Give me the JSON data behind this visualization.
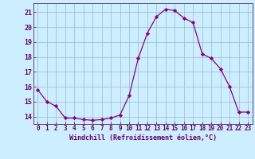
{
  "x_values": [
    0,
    1,
    2,
    3,
    4,
    5,
    6,
    7,
    8,
    9,
    10,
    11,
    12,
    13,
    14,
    15,
    16,
    17,
    18,
    19,
    20,
    21,
    22,
    23
  ],
  "y_values": [
    15.8,
    15.0,
    14.7,
    13.9,
    13.9,
    13.8,
    13.75,
    13.8,
    13.9,
    14.1,
    15.4,
    17.9,
    19.6,
    20.7,
    21.2,
    21.1,
    20.6,
    20.3,
    18.2,
    17.9,
    17.2,
    16.0,
    14.3,
    14.3
  ],
  "line_color": "#880088",
  "marker": "D",
  "marker_size": 2.2,
  "bg_color": "#cceeff",
  "grid_color": "#99bbcc",
  "xlabel": "Windchill (Refroidissement éolien,°C)",
  "xlabel_color": "#660066",
  "tick_color": "#660066",
  "axis_color": "#664466",
  "ylim": [
    13.5,
    21.6
  ],
  "xlim": [
    -0.5,
    23.5
  ],
  "yticks": [
    14,
    15,
    16,
    17,
    18,
    19,
    20,
    21
  ],
  "xticks": [
    0,
    1,
    2,
    3,
    4,
    5,
    6,
    7,
    8,
    9,
    10,
    11,
    12,
    13,
    14,
    15,
    16,
    17,
    18,
    19,
    20,
    21,
    22,
    23
  ],
  "tick_fontsize": 5.5,
  "xlabel_fontsize": 6.0
}
